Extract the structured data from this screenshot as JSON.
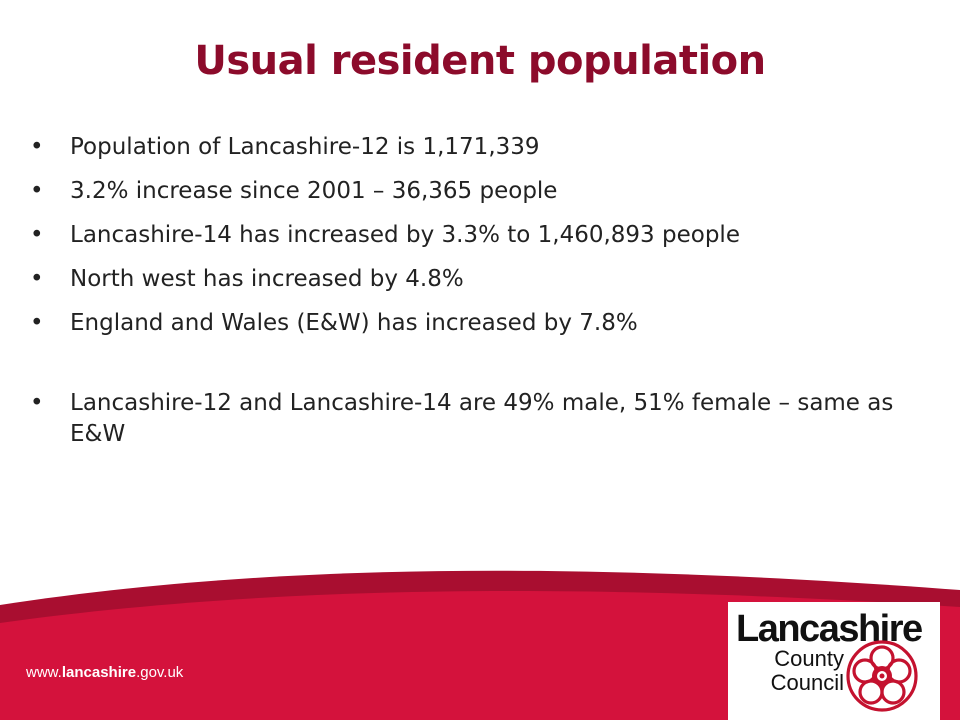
{
  "slide": {
    "title": "Usual resident population",
    "bullets": [
      "Population of Lancashire-12 is 1,171,339",
      "3.2% increase since 2001 – 36,365 people",
      "Lancashire-14 has increased by 3.3% to 1,460,893 people",
      "North west has increased by 4.8%",
      "England and Wales (E&W) has increased by 7.8%",
      "Lancashire-12 and Lancashire-14 are 49% male, 51% female – same as E&W"
    ]
  },
  "footer": {
    "url_prefix": "www.",
    "url_bold": "lancashire",
    "url_suffix": ".gov.uk"
  },
  "logo": {
    "word": "Lancashire",
    "line2": "County",
    "line3": "Council",
    "emblem": "red-rose-icon"
  },
  "colors": {
    "title": "#8c0b2b",
    "footer": "#d4123c",
    "footer_dark": "#a90e30"
  }
}
